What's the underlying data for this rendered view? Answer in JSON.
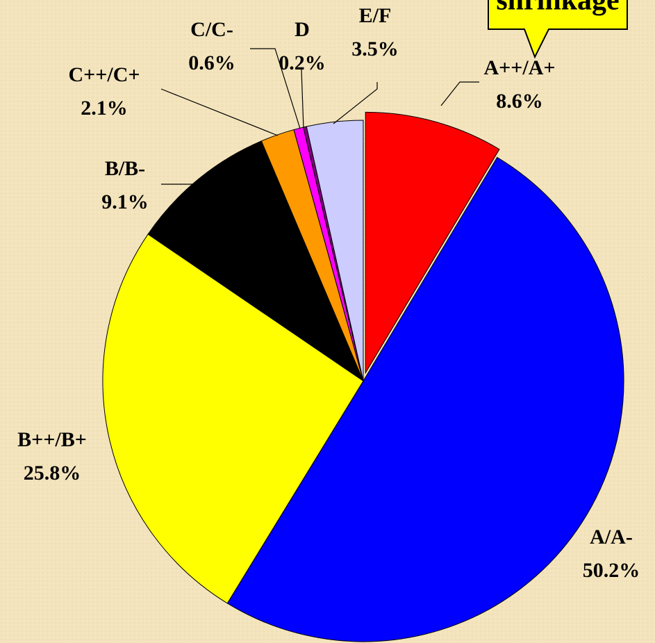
{
  "chart_data": {
    "type": "pie",
    "annotation": "shrinkage",
    "categories": [
      "A++/A+",
      "A/A-",
      "B++/B+",
      "B/B-",
      "C++/C+",
      "C/C-",
      "D",
      "E/F"
    ],
    "values": [
      8.6,
      50.2,
      25.8,
      9.1,
      2.1,
      0.6,
      0.2,
      3.5
    ],
    "value_labels": [
      "8.6%",
      "50.2%",
      "25.8%",
      "9.1%",
      "2.1%",
      "0.6%",
      "0.2%",
      "3.5%"
    ],
    "colors": [
      "#ff0000",
      "#0000ff",
      "#ffff00",
      "#000000",
      "#ff9900",
      "#ff00ff",
      "#800080",
      "#ccccff"
    ]
  }
}
